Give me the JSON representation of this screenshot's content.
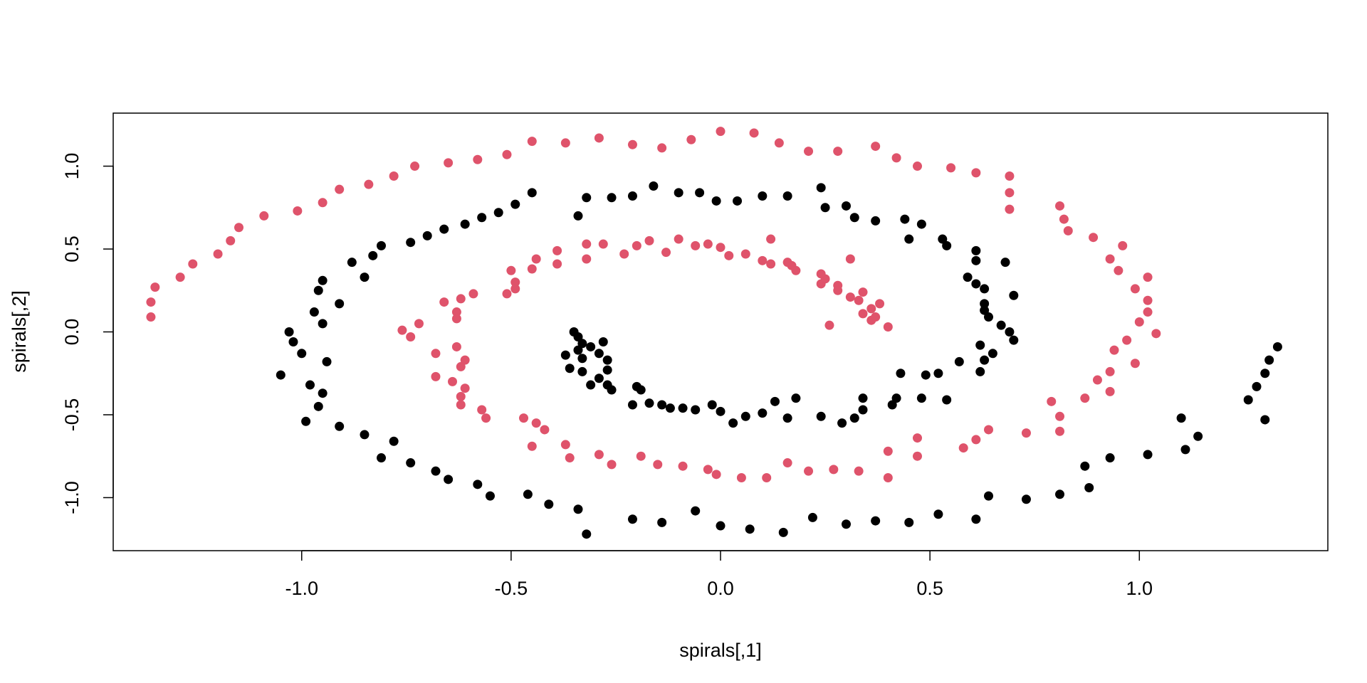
{
  "chart_data": {
    "type": "scatter",
    "title": "",
    "xlabel": "spirals[,1]",
    "ylabel": "spirals[,2]",
    "xlim": [
      -1.45,
      1.45
    ],
    "ylim": [
      -1.32,
      1.32
    ],
    "xticks": [
      -1.0,
      -0.5,
      0.0,
      0.5,
      1.0
    ],
    "xtick_labels": [
      "-1.0",
      "-0.5",
      "0.0",
      "0.5",
      "1.0"
    ],
    "yticks": [
      -1.0,
      -0.5,
      0.0,
      0.5,
      1.0
    ],
    "ytick_labels": [
      "-1.0",
      "-0.5",
      "0.0",
      "0.5",
      "1.0"
    ],
    "grid": false,
    "series": [
      {
        "color": "#000000",
        "points": [
          [
            -0.35,
            0.0
          ],
          [
            -0.34,
            -0.03
          ],
          [
            -0.33,
            -0.07
          ],
          [
            -0.31,
            -0.09
          ],
          [
            -0.28,
            -0.06
          ],
          [
            -0.37,
            -0.14
          ],
          [
            -0.34,
            -0.11
          ],
          [
            -0.33,
            -0.16
          ],
          [
            -0.29,
            -0.13
          ],
          [
            -0.27,
            -0.17
          ],
          [
            -0.36,
            -0.22
          ],
          [
            -0.33,
            -0.24
          ],
          [
            -0.29,
            -0.28
          ],
          [
            -0.27,
            -0.23
          ],
          [
            -0.31,
            -0.32
          ],
          [
            -0.27,
            -0.32
          ],
          [
            -0.26,
            -0.35
          ],
          [
            -0.2,
            -0.33
          ],
          [
            -0.19,
            -0.35
          ],
          [
            -0.21,
            -0.44
          ],
          [
            -0.17,
            -0.43
          ],
          [
            -0.14,
            -0.44
          ],
          [
            -0.12,
            -0.46
          ],
          [
            -0.09,
            -0.46
          ],
          [
            -0.06,
            -0.47
          ],
          [
            -0.02,
            -0.44
          ],
          [
            0.0,
            -0.48
          ],
          [
            0.03,
            -0.55
          ],
          [
            0.06,
            -0.51
          ],
          [
            0.1,
            -0.49
          ],
          [
            0.13,
            -0.42
          ],
          [
            0.16,
            -0.52
          ],
          [
            0.18,
            -0.4
          ],
          [
            0.24,
            -0.51
          ],
          [
            0.29,
            -0.55
          ],
          [
            0.32,
            -0.52
          ],
          [
            0.34,
            -0.47
          ],
          [
            0.34,
            -0.4
          ],
          [
            0.41,
            -0.44
          ],
          [
            0.42,
            -0.4
          ],
          [
            0.43,
            -0.25
          ],
          [
            0.48,
            -0.4
          ],
          [
            0.49,
            -0.26
          ],
          [
            0.52,
            -0.25
          ],
          [
            0.54,
            -0.41
          ],
          [
            0.57,
            -0.18
          ],
          [
            0.62,
            -0.24
          ],
          [
            0.63,
            -0.17
          ],
          [
            0.65,
            -0.13
          ],
          [
            0.62,
            -0.08
          ],
          [
            0.67,
            0.04
          ],
          [
            0.69,
            0.0
          ],
          [
            0.7,
            -0.05
          ],
          [
            0.64,
            0.09
          ],
          [
            0.63,
            0.13
          ],
          [
            0.63,
            0.17
          ],
          [
            0.63,
            0.26
          ],
          [
            0.7,
            0.22
          ],
          [
            0.61,
            0.29
          ],
          [
            0.59,
            0.33
          ],
          [
            0.61,
            0.43
          ],
          [
            0.61,
            0.49
          ],
          [
            0.68,
            0.42
          ],
          [
            0.54,
            0.52
          ],
          [
            0.53,
            0.56
          ],
          [
            0.48,
            0.65
          ],
          [
            0.45,
            0.56
          ],
          [
            0.44,
            0.68
          ],
          [
            0.37,
            0.67
          ],
          [
            0.32,
            0.69
          ],
          [
            0.3,
            0.76
          ],
          [
            0.25,
            0.75
          ],
          [
            0.24,
            0.87
          ],
          [
            0.16,
            0.82
          ],
          [
            0.1,
            0.82
          ],
          [
            0.04,
            0.79
          ],
          [
            -0.01,
            0.79
          ],
          [
            -0.05,
            0.84
          ],
          [
            -0.1,
            0.84
          ],
          [
            -0.16,
            0.88
          ],
          [
            -0.21,
            0.82
          ],
          [
            -0.26,
            0.81
          ],
          [
            -0.32,
            0.81
          ],
          [
            -0.34,
            0.7
          ],
          [
            -0.45,
            0.84
          ],
          [
            -0.49,
            0.77
          ],
          [
            -0.53,
            0.72
          ],
          [
            -0.57,
            0.69
          ],
          [
            -0.61,
            0.65
          ],
          [
            -0.66,
            0.62
          ],
          [
            -0.7,
            0.58
          ],
          [
            -0.74,
            0.54
          ],
          [
            -0.81,
            0.52
          ],
          [
            -0.83,
            0.46
          ],
          [
            -0.85,
            0.33
          ],
          [
            -0.88,
            0.42
          ],
          [
            -0.91,
            0.17
          ],
          [
            -0.95,
            0.31
          ],
          [
            -0.96,
            0.25
          ],
          [
            -0.97,
            0.12
          ],
          [
            -0.95,
            0.05
          ],
          [
            -1.03,
            0.0
          ],
          [
            -1.02,
            -0.06
          ],
          [
            -1.0,
            -0.13
          ],
          [
            -0.94,
            -0.18
          ],
          [
            -1.05,
            -0.26
          ],
          [
            -0.98,
            -0.32
          ],
          [
            -0.95,
            -0.37
          ],
          [
            -0.96,
            -0.45
          ],
          [
            -0.99,
            -0.54
          ],
          [
            -0.91,
            -0.57
          ],
          [
            -0.85,
            -0.62
          ],
          [
            -0.81,
            -0.76
          ],
          [
            -0.78,
            -0.66
          ],
          [
            -0.74,
            -0.79
          ],
          [
            -0.68,
            -0.84
          ],
          [
            -0.65,
            -0.89
          ],
          [
            -0.58,
            -0.92
          ],
          [
            -0.55,
            -0.99
          ],
          [
            -0.46,
            -0.98
          ],
          [
            -0.41,
            -1.04
          ],
          [
            -0.34,
            -1.07
          ],
          [
            -0.32,
            -1.22
          ],
          [
            -0.21,
            -1.13
          ],
          [
            -0.14,
            -1.15
          ],
          [
            -0.06,
            -1.08
          ],
          [
            0.0,
            -1.17
          ],
          [
            0.07,
            -1.19
          ],
          [
            0.15,
            -1.21
          ],
          [
            0.22,
            -1.12
          ],
          [
            0.3,
            -1.16
          ],
          [
            0.37,
            -1.14
          ],
          [
            0.45,
            -1.15
          ],
          [
            0.52,
            -1.1
          ],
          [
            0.61,
            -1.13
          ],
          [
            0.64,
            -0.99
          ],
          [
            0.73,
            -1.01
          ],
          [
            0.81,
            -0.98
          ],
          [
            0.87,
            -0.81
          ],
          [
            0.88,
            -0.94
          ],
          [
            0.93,
            -0.76
          ],
          [
            1.02,
            -0.74
          ],
          [
            1.1,
            -0.52
          ],
          [
            1.11,
            -0.71
          ],
          [
            1.14,
            -0.63
          ],
          [
            1.26,
            -0.41
          ],
          [
            1.28,
            -0.33
          ],
          [
            1.3,
            -0.53
          ],
          [
            1.3,
            -0.25
          ],
          [
            1.31,
            -0.17
          ],
          [
            1.33,
            -0.09
          ]
        ]
      },
      {
        "color": "#DF536B",
        "points": [
          [
            0.4,
            0.03
          ],
          [
            0.36,
            0.07
          ],
          [
            0.37,
            0.09
          ],
          [
            0.34,
            0.11
          ],
          [
            0.38,
            0.17
          ],
          [
            0.36,
            0.14
          ],
          [
            0.33,
            0.19
          ],
          [
            0.31,
            0.21
          ],
          [
            0.34,
            0.24
          ],
          [
            0.26,
            0.04
          ],
          [
            0.28,
            0.25
          ],
          [
            0.28,
            0.28
          ],
          [
            0.24,
            0.29
          ],
          [
            0.25,
            0.32
          ],
          [
            0.24,
            0.35
          ],
          [
            0.31,
            0.44
          ],
          [
            0.18,
            0.37
          ],
          [
            0.17,
            0.4
          ],
          [
            0.16,
            0.42
          ],
          [
            0.12,
            0.41
          ],
          [
            0.1,
            0.43
          ],
          [
            0.12,
            0.56
          ],
          [
            0.06,
            0.47
          ],
          [
            0.02,
            0.46
          ],
          [
            0.0,
            0.51
          ],
          [
            -0.03,
            0.53
          ],
          [
            -0.06,
            0.52
          ],
          [
            -0.1,
            0.56
          ],
          [
            -0.13,
            0.48
          ],
          [
            -0.17,
            0.55
          ],
          [
            -0.2,
            0.52
          ],
          [
            -0.23,
            0.47
          ],
          [
            -0.28,
            0.53
          ],
          [
            -0.32,
            0.53
          ],
          [
            -0.32,
            0.44
          ],
          [
            -0.39,
            0.41
          ],
          [
            -0.39,
            0.49
          ],
          [
            -0.44,
            0.44
          ],
          [
            -0.45,
            0.38
          ],
          [
            -0.5,
            0.37
          ],
          [
            -0.49,
            0.3
          ],
          [
            -0.49,
            0.26
          ],
          [
            -0.51,
            0.23
          ],
          [
            -0.59,
            0.23
          ],
          [
            -0.62,
            0.2
          ],
          [
            -0.63,
            0.12
          ],
          [
            -0.66,
            0.18
          ],
          [
            -0.63,
            0.08
          ],
          [
            -0.72,
            0.05
          ],
          [
            -0.74,
            -0.03
          ],
          [
            -0.76,
            0.01
          ],
          [
            -0.68,
            -0.13
          ],
          [
            -0.63,
            -0.09
          ],
          [
            -0.61,
            -0.17
          ],
          [
            -0.62,
            -0.21
          ],
          [
            -0.68,
            -0.27
          ],
          [
            -0.64,
            -0.3
          ],
          [
            -0.61,
            -0.34
          ],
          [
            -0.62,
            -0.39
          ],
          [
            -0.62,
            -0.44
          ],
          [
            -0.57,
            -0.47
          ],
          [
            -0.56,
            -0.52
          ],
          [
            -0.47,
            -0.52
          ],
          [
            -0.44,
            -0.55
          ],
          [
            -0.42,
            -0.59
          ],
          [
            -0.45,
            -0.69
          ],
          [
            -0.37,
            -0.68
          ],
          [
            -0.36,
            -0.76
          ],
          [
            -0.29,
            -0.74
          ],
          [
            -0.26,
            -0.8
          ],
          [
            -0.19,
            -0.75
          ],
          [
            -0.15,
            -0.8
          ],
          [
            -0.09,
            -0.81
          ],
          [
            -0.03,
            -0.83
          ],
          [
            -0.01,
            -0.86
          ],
          [
            0.05,
            -0.88
          ],
          [
            0.11,
            -0.88
          ],
          [
            0.16,
            -0.79
          ],
          [
            0.21,
            -0.84
          ],
          [
            0.27,
            -0.83
          ],
          [
            0.33,
            -0.84
          ],
          [
            0.4,
            -0.88
          ],
          [
            0.4,
            -0.72
          ],
          [
            0.47,
            -0.75
          ],
          [
            0.47,
            -0.64
          ],
          [
            0.58,
            -0.7
          ],
          [
            0.61,
            -0.65
          ],
          [
            0.64,
            -0.59
          ],
          [
            0.73,
            -0.61
          ],
          [
            0.79,
            -0.42
          ],
          [
            0.81,
            -0.51
          ],
          [
            0.81,
            -0.6
          ],
          [
            0.87,
            -0.4
          ],
          [
            0.9,
            -0.29
          ],
          [
            0.93,
            -0.36
          ],
          [
            0.93,
            -0.24
          ],
          [
            0.94,
            -0.11
          ],
          [
            0.97,
            -0.05
          ],
          [
            0.99,
            -0.19
          ],
          [
            1.0,
            0.06
          ],
          [
            1.04,
            -0.01
          ],
          [
            1.02,
            0.12
          ],
          [
            1.02,
            0.19
          ],
          [
            0.99,
            0.26
          ],
          [
            1.02,
            0.33
          ],
          [
            0.95,
            0.37
          ],
          [
            0.93,
            0.44
          ],
          [
            0.96,
            0.52
          ],
          [
            0.89,
            0.57
          ],
          [
            0.83,
            0.61
          ],
          [
            0.82,
            0.68
          ],
          [
            0.81,
            0.76
          ],
          [
            0.69,
            0.74
          ],
          [
            0.69,
            0.84
          ],
          [
            0.69,
            0.94
          ],
          [
            0.61,
            0.96
          ],
          [
            0.55,
            0.99
          ],
          [
            0.47,
            1.0
          ],
          [
            0.42,
            1.05
          ],
          [
            0.37,
            1.12
          ],
          [
            0.28,
            1.09
          ],
          [
            0.21,
            1.09
          ],
          [
            0.14,
            1.14
          ],
          [
            0.08,
            1.2
          ],
          [
            0.0,
            1.21
          ],
          [
            -0.07,
            1.16
          ],
          [
            -0.14,
            1.11
          ],
          [
            -0.21,
            1.13
          ],
          [
            -0.29,
            1.17
          ],
          [
            -0.37,
            1.14
          ],
          [
            -0.45,
            1.15
          ],
          [
            -0.51,
            1.07
          ],
          [
            -0.58,
            1.04
          ],
          [
            -0.65,
            1.02
          ],
          [
            -0.73,
            1.0
          ],
          [
            -0.78,
            0.94
          ],
          [
            -0.84,
            0.89
          ],
          [
            -0.91,
            0.86
          ],
          [
            -0.95,
            0.78
          ],
          [
            -1.01,
            0.73
          ],
          [
            -1.09,
            0.7
          ],
          [
            -1.15,
            0.63
          ],
          [
            -1.17,
            0.55
          ],
          [
            -1.2,
            0.47
          ],
          [
            -1.26,
            0.41
          ],
          [
            -1.29,
            0.33
          ],
          [
            -1.35,
            0.27
          ],
          [
            -1.36,
            0.18
          ],
          [
            -1.36,
            0.09
          ]
        ]
      }
    ]
  }
}
